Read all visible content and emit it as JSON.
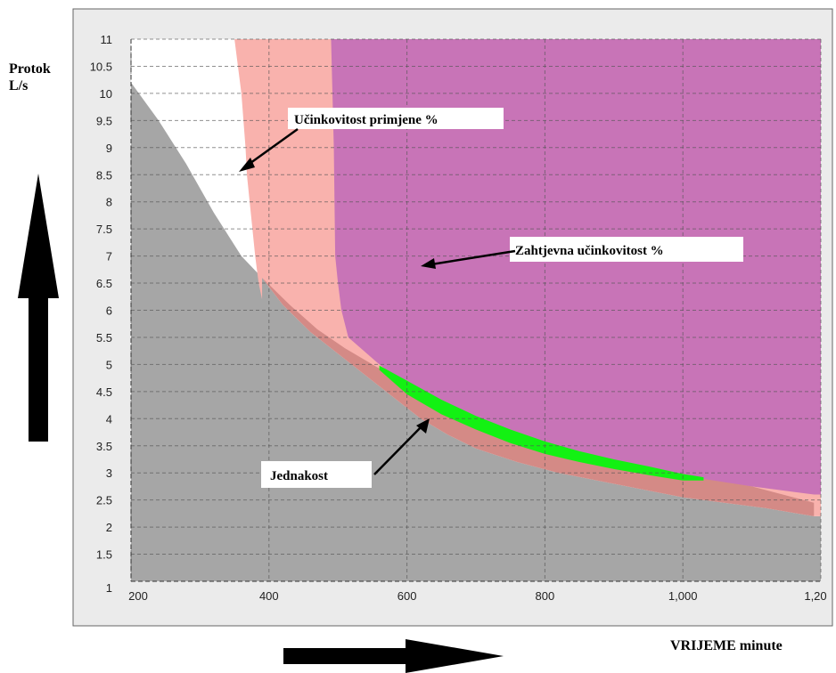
{
  "chart_data": {
    "type": "area",
    "y_axis_label": [
      "Protok",
      "L/s"
    ],
    "x_axis_label": "VRIJEME minute",
    "xlim": [
      200,
      1200
    ],
    "ylim": [
      1,
      11
    ],
    "x_ticks": [
      "200",
      "400",
      "600",
      "800",
      "1,000",
      "1,20"
    ],
    "x_tick_values": [
      200,
      400,
      600,
      800,
      1000,
      1200
    ],
    "y_ticks": [
      "11",
      "10.5",
      "10",
      "9.5",
      "9",
      "8.5",
      "8",
      "7.5",
      "7",
      "6.5",
      "6",
      "5.5",
      "5",
      "4.5",
      "4",
      "3.5",
      "3",
      "2.5",
      "2",
      "1.5",
      "1"
    ],
    "y_tick_values": [
      11,
      10.5,
      10,
      9.5,
      9,
      8.5,
      8,
      7.5,
      7,
      6.5,
      6,
      5.5,
      5,
      4.5,
      4,
      3.5,
      3,
      2.5,
      2,
      1.5,
      1
    ],
    "regions": [
      {
        "id": "white-region",
        "color": "#ffffff",
        "boundary": [
          [
            200,
            10.2
          ],
          [
            240,
            9.5
          ],
          [
            280,
            8.7
          ],
          [
            320,
            7.8
          ],
          [
            360,
            7.0
          ],
          [
            390,
            6.6
          ],
          [
            420,
            6.1
          ],
          [
            460,
            5.6
          ],
          [
            500,
            5.2
          ],
          [
            540,
            4.8
          ],
          [
            580,
            4.4
          ],
          [
            620,
            4.0
          ],
          [
            660,
            3.7
          ],
          [
            700,
            3.45
          ],
          [
            760,
            3.2
          ],
          [
            820,
            3.0
          ],
          [
            880,
            2.85
          ],
          [
            940,
            2.7
          ],
          [
            1000,
            2.55
          ],
          [
            1060,
            2.45
          ],
          [
            1120,
            2.35
          ],
          [
            1190,
            2.2
          ]
        ]
      },
      {
        "id": "pink-region",
        "color": "#f9b2ad",
        "boundary": [
          [
            350,
            11
          ],
          [
            355,
            10.5
          ],
          [
            360,
            10
          ],
          [
            363,
            9.5
          ],
          [
            366,
            9
          ],
          [
            368,
            8.5
          ],
          [
            372,
            8
          ],
          [
            376,
            7.5
          ],
          [
            380,
            7
          ],
          [
            385,
            6.5
          ],
          [
            390,
            6.2
          ]
        ]
      },
      {
        "id": "dark-salmon-region",
        "color": "#d48a86",
        "boundary": [
          [
            390,
            6.6
          ],
          [
            430,
            6.1
          ],
          [
            470,
            5.65
          ],
          [
            510,
            5.3
          ],
          [
            550,
            5.0
          ],
          [
            570,
            4.85
          ],
          [
            600,
            4.6
          ],
          [
            700,
            3.85
          ],
          [
            800,
            3.45
          ],
          [
            900,
            3.2
          ],
          [
            1000,
            3.0
          ],
          [
            1100,
            2.75
          ],
          [
            1190,
            2.45
          ]
        ]
      },
      {
        "id": "magenta-region",
        "color": "#c874b7",
        "boundary": [
          [
            490,
            11
          ],
          [
            492,
            10
          ],
          [
            494,
            9
          ],
          [
            495,
            8
          ],
          [
            496,
            7
          ],
          [
            500,
            6.5
          ],
          [
            505,
            6
          ],
          [
            515,
            5.5
          ],
          [
            560,
            5.0
          ],
          [
            620,
            4.4
          ],
          [
            700,
            3.9
          ],
          [
            800,
            3.5
          ],
          [
            900,
            3.2
          ],
          [
            1000,
            2.95
          ],
          [
            1050,
            2.85
          ],
          [
            1100,
            2.75
          ],
          [
            1190,
            2.6
          ]
        ]
      },
      {
        "id": "green-band",
        "color": "#13f113",
        "upper": [
          [
            560,
            4.98
          ],
          [
            600,
            4.7
          ],
          [
            650,
            4.35
          ],
          [
            700,
            4.05
          ],
          [
            750,
            3.8
          ],
          [
            800,
            3.58
          ],
          [
            850,
            3.4
          ],
          [
            900,
            3.25
          ],
          [
            950,
            3.12
          ],
          [
            1000,
            2.98
          ],
          [
            1030,
            2.92
          ]
        ],
        "lower": [
          [
            560,
            4.9
          ],
          [
            600,
            4.45
          ],
          [
            650,
            4.08
          ],
          [
            700,
            3.8
          ],
          [
            750,
            3.55
          ],
          [
            800,
            3.35
          ],
          [
            850,
            3.2
          ],
          [
            900,
            3.07
          ],
          [
            950,
            2.96
          ],
          [
            1000,
            2.86
          ],
          [
            1030,
            2.86
          ]
        ]
      }
    ],
    "annotations": [
      {
        "text": "Učinkovitost primjene %",
        "arrow_to": [
          355,
          8.8
        ]
      },
      {
        "text": "Zahtjevna učinkovitost %",
        "arrow_to": [
          530,
          6.9
        ]
      },
      {
        "text": "Jednakost",
        "arrow_to": [
          635,
          4.0
        ]
      }
    ]
  }
}
